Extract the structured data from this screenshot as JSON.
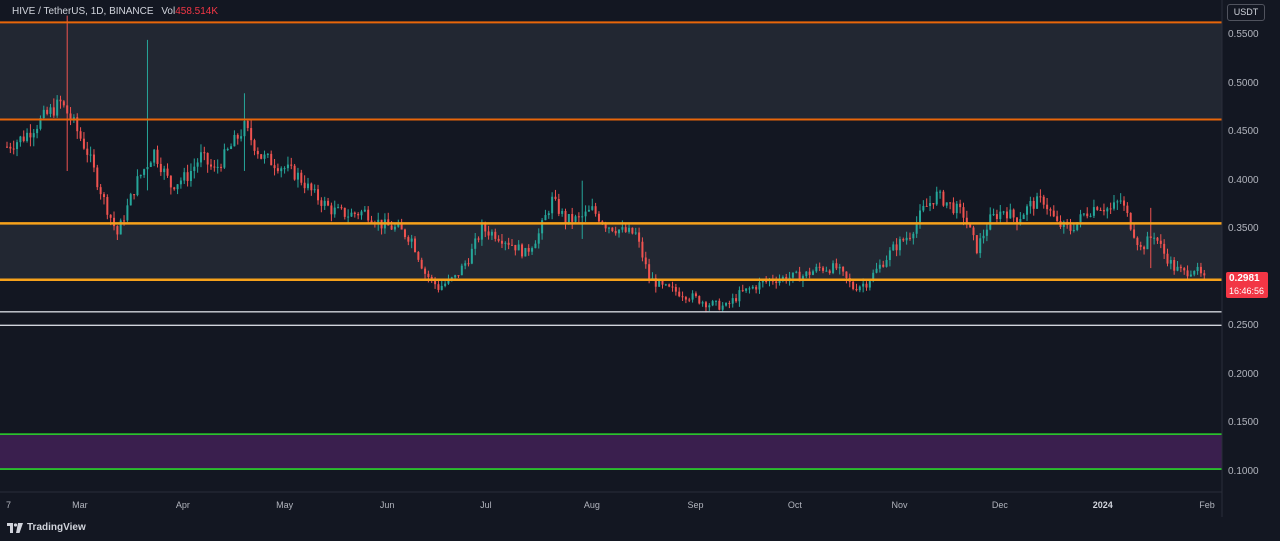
{
  "header": {
    "symbol": "HIVE / TetherUS, 1D, BINANCE",
    "vol_label": "Vol",
    "vol_value": "458.514K"
  },
  "currency_button": "USDT",
  "price_tag": {
    "price": "0.2981",
    "countdown": "16:46:56"
  },
  "brand": "TradingView",
  "colors": {
    "background": "#131722",
    "up_candle": "#26a69a",
    "down_candle": "#ef5350",
    "resistance_orange": "#e8660a",
    "support_orange": "#f7a21b",
    "support_white": "#d1d4dc",
    "support_green": "#2bd92b",
    "zone_purple": "#3a1f4e"
  },
  "chart_data": {
    "type": "candlestick",
    "title": "HIVE / TetherUS, 1D, BINANCE",
    "ylim": [
      0.09,
      0.575
    ],
    "yticks": [
      "0.5500",
      "0.5000",
      "0.4500",
      "0.4000",
      "0.3500",
      "0.3000",
      "0.2500",
      "0.2000",
      "0.1500",
      "0.1000"
    ],
    "xticks": [
      "7",
      "Mar",
      "Apr",
      "May",
      "Jun",
      "Jul",
      "Aug",
      "Sep",
      "Oct",
      "Nov",
      "Dec",
      "2024",
      "Feb"
    ],
    "xtick_dates": [
      "2023-02-07",
      "2023-03-01",
      "2023-04-01",
      "2023-05-01",
      "2023-06-01",
      "2023-07-01",
      "2023-08-01",
      "2023-09-01",
      "2023-10-01",
      "2023-11-01",
      "2023-12-01",
      "2024-01-01",
      "2024-02-01"
    ],
    "xlim": [
      "2023-02-07",
      "2024-02-05"
    ],
    "last_date": "2024-01-31",
    "grid": false,
    "horizontal_levels": [
      {
        "price": 0.563,
        "color": "orange"
      },
      {
        "price": 0.463,
        "color": "orange"
      },
      {
        "price": 0.356,
        "color": "light-orange"
      },
      {
        "price": 0.298,
        "color": "light-orange"
      },
      {
        "price": 0.265,
        "color": "white"
      },
      {
        "price": 0.251,
        "color": "white"
      },
      {
        "price": 0.139,
        "color": "green"
      },
      {
        "price": 0.103,
        "color": "green"
      }
    ],
    "shaded_zones": [
      {
        "from": 0.463,
        "to": 0.563,
        "color": "grey"
      },
      {
        "from": 0.298,
        "to": 0.356,
        "color": "grey"
      },
      {
        "from": 0.103,
        "to": 0.139,
        "color": "purple"
      }
    ],
    "close_path": [
      [
        "2023-02-07",
        0.435
      ],
      [
        "2023-02-12",
        0.445
      ],
      [
        "2023-02-18",
        0.465
      ],
      [
        "2023-02-23",
        0.48
      ],
      [
        "2023-02-26",
        0.465
      ],
      [
        "2023-03-03",
        0.43
      ],
      [
        "2023-03-08",
        0.38
      ],
      [
        "2023-03-12",
        0.345
      ],
      [
        "2023-03-18",
        0.4
      ],
      [
        "2023-03-23",
        0.43
      ],
      [
        "2023-03-28",
        0.395
      ],
      [
        "2023-04-02",
        0.405
      ],
      [
        "2023-04-06",
        0.425
      ],
      [
        "2023-04-10",
        0.41
      ],
      [
        "2023-04-15",
        0.435
      ],
      [
        "2023-04-19",
        0.455
      ],
      [
        "2023-04-24",
        0.425
      ],
      [
        "2023-04-30",
        0.415
      ],
      [
        "2023-05-05",
        0.405
      ],
      [
        "2023-05-10",
        0.385
      ],
      [
        "2023-05-15",
        0.37
      ],
      [
        "2023-05-20",
        0.365
      ],
      [
        "2023-05-25",
        0.368
      ],
      [
        "2023-05-30",
        0.355
      ],
      [
        "2023-06-04",
        0.35
      ],
      [
        "2023-06-08",
        0.34
      ],
      [
        "2023-06-12",
        0.305
      ],
      [
        "2023-06-16",
        0.29
      ],
      [
        "2023-06-21",
        0.3
      ],
      [
        "2023-06-25",
        0.32
      ],
      [
        "2023-06-29",
        0.35
      ],
      [
        "2023-07-03",
        0.345
      ],
      [
        "2023-07-08",
        0.335
      ],
      [
        "2023-07-12",
        0.325
      ],
      [
        "2023-07-16",
        0.345
      ],
      [
        "2023-07-20",
        0.38
      ],
      [
        "2023-07-24",
        0.36
      ],
      [
        "2023-07-28",
        0.36
      ],
      [
        "2023-08-01",
        0.37
      ],
      [
        "2023-08-05",
        0.355
      ],
      [
        "2023-08-10",
        0.348
      ],
      [
        "2023-08-14",
        0.345
      ],
      [
        "2023-08-18",
        0.3
      ],
      [
        "2023-08-22",
        0.29
      ],
      [
        "2023-08-27",
        0.285
      ],
      [
        "2023-08-31",
        0.28
      ],
      [
        "2023-09-05",
        0.273
      ],
      [
        "2023-09-10",
        0.27
      ],
      [
        "2023-09-14",
        0.283
      ],
      [
        "2023-09-18",
        0.29
      ],
      [
        "2023-09-23",
        0.298
      ],
      [
        "2023-09-28",
        0.3
      ],
      [
        "2023-10-03",
        0.302
      ],
      [
        "2023-10-08",
        0.31
      ],
      [
        "2023-10-13",
        0.31
      ],
      [
        "2023-10-18",
        0.29
      ],
      [
        "2023-10-22",
        0.295
      ],
      [
        "2023-10-26",
        0.312
      ],
      [
        "2023-10-30",
        0.33
      ],
      [
        "2023-11-04",
        0.345
      ],
      [
        "2023-11-08",
        0.37
      ],
      [
        "2023-11-12",
        0.385
      ],
      [
        "2023-11-16",
        0.375
      ],
      [
        "2023-11-20",
        0.365
      ],
      [
        "2023-11-24",
        0.33
      ],
      [
        "2023-11-28",
        0.36
      ],
      [
        "2023-12-02",
        0.37
      ],
      [
        "2023-12-06",
        0.36
      ],
      [
        "2023-12-10",
        0.375
      ],
      [
        "2023-12-14",
        0.38
      ],
      [
        "2023-12-18",
        0.355
      ],
      [
        "2023-12-22",
        0.35
      ],
      [
        "2023-12-26",
        0.365
      ],
      [
        "2023-12-30",
        0.375
      ],
      [
        "2024-01-03",
        0.37
      ],
      [
        "2024-01-06",
        0.38
      ],
      [
        "2024-01-09",
        0.355
      ],
      [
        "2024-01-12",
        0.33
      ],
      [
        "2024-01-16",
        0.345
      ],
      [
        "2024-01-19",
        0.325
      ],
      [
        "2024-01-22",
        0.31
      ],
      [
        "2024-01-25",
        0.305
      ],
      [
        "2024-01-28",
        0.31
      ],
      [
        "2024-01-31",
        0.298
      ]
    ],
    "spikes": [
      {
        "date": "2023-02-25",
        "high": 0.57,
        "low": 0.41
      },
      {
        "date": "2023-03-21",
        "high": 0.545,
        "low": 0.39
      },
      {
        "date": "2023-04-19",
        "high": 0.49,
        "low": 0.41
      },
      {
        "date": "2023-07-29",
        "high": 0.4,
        "low": 0.34
      },
      {
        "date": "2024-01-15",
        "high": 0.372,
        "low": 0.31
      }
    ]
  }
}
